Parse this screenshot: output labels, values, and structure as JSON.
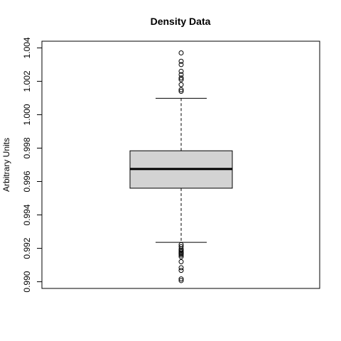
{
  "chart_data": {
    "type": "boxplot",
    "title": "Density Data",
    "xlabel": "",
    "ylabel": "Arbitrary Units",
    "ylim": [
      0.9896,
      1.0044
    ],
    "yticks": [
      0.99,
      0.992,
      0.994,
      0.996,
      0.998,
      1.0,
      1.002,
      1.004
    ],
    "ytick_labels": [
      "0.990",
      "0.992",
      "0.994",
      "0.996",
      "0.998",
      "1.000",
      "1.002",
      "1.004"
    ],
    "box": {
      "whisker_low": 0.99236,
      "q1": 0.9956,
      "median": 0.99675,
      "q3": 0.99784,
      "whisker_high": 1.00098
    },
    "outliers": [
      0.99017,
      0.99007,
      0.99068,
      0.99084,
      0.9912,
      0.9915,
      0.9916,
      0.99168,
      0.99172,
      0.9918,
      0.99188,
      0.99196,
      0.9921,
      0.99222,
      1.0014,
      1.0015,
      1.0018,
      1.0021,
      1.0022,
      1.0024,
      1.0026,
      1.003,
      1.0032,
      1.0037
    ],
    "box_fill": "#d3d3d3",
    "grid": false
  }
}
